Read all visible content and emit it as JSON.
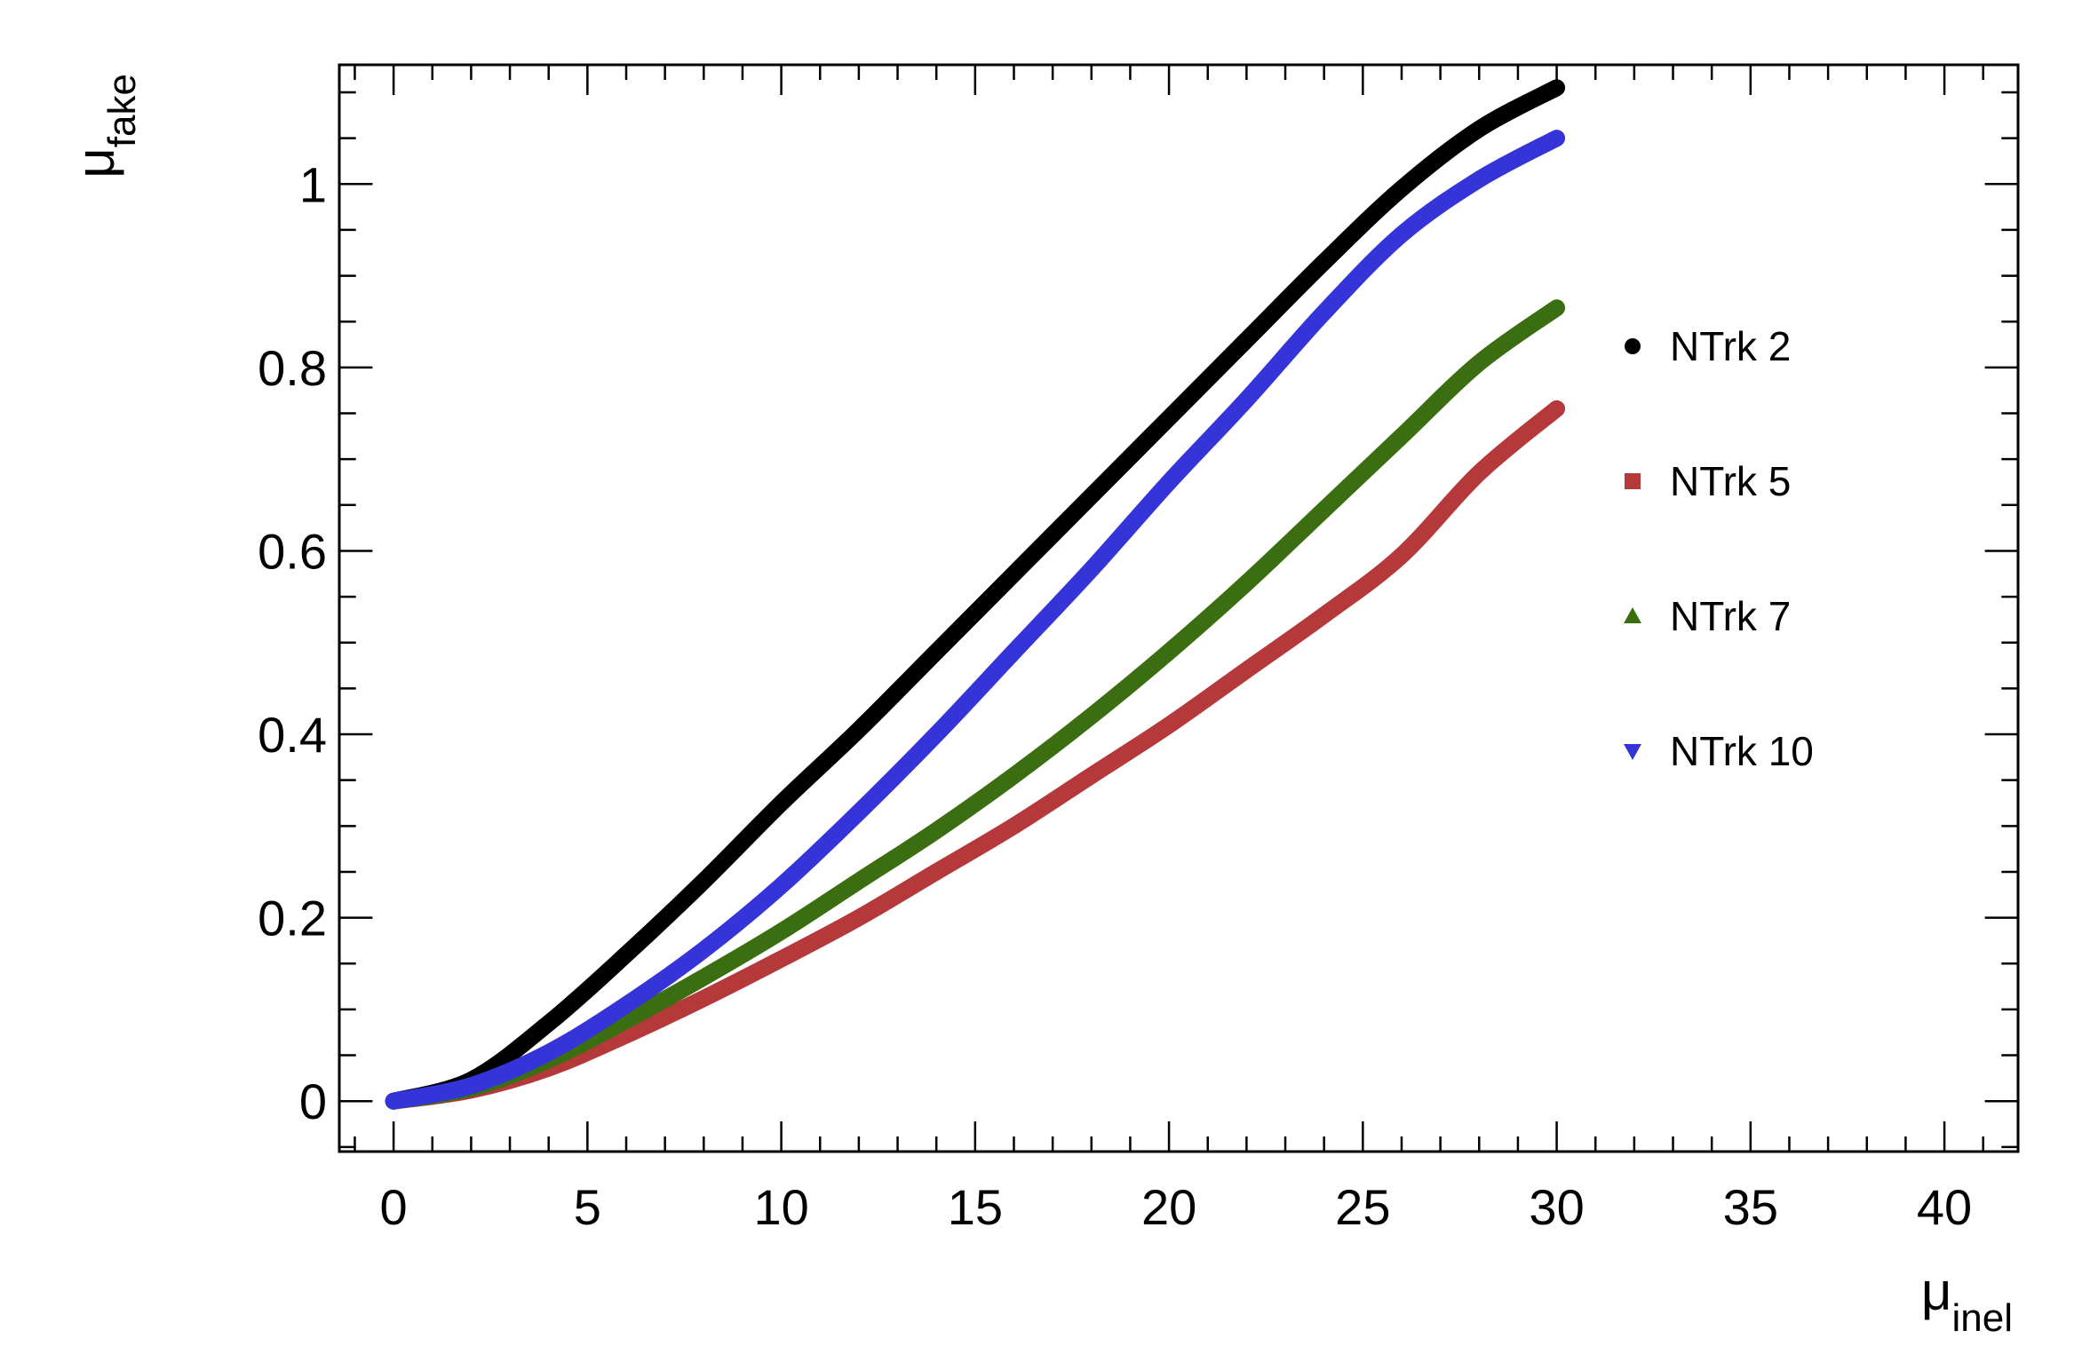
{
  "chart_data": {
    "type": "line",
    "title": "",
    "xlabel": {
      "main": "μ",
      "sub": "inel"
    },
    "ylabel": {
      "main": "μ",
      "sub": "fake"
    },
    "xlim": [
      -1.4,
      41.9
    ],
    "ylim": [
      -0.055,
      1.13
    ],
    "xticks": [
      0,
      5,
      10,
      15,
      20,
      25,
      30,
      35,
      40
    ],
    "xtick_labels": [
      "0",
      "5",
      "10",
      "15",
      "20",
      "25",
      "30",
      "35",
      "40"
    ],
    "yticks": [
      0,
      0.2,
      0.4,
      0.6,
      0.8,
      1
    ],
    "ytick_labels": [
      "0",
      "0.2",
      "0.4",
      "0.6",
      "0.8",
      "1"
    ],
    "grid": false,
    "legend_position": "right",
    "x": [
      0,
      2,
      4,
      6,
      8,
      10,
      12,
      14,
      16,
      18,
      20,
      22,
      24,
      26,
      28,
      30
    ],
    "series": [
      {
        "name": "NTrk 2",
        "marker": "circle",
        "color": "#000000",
        "values": [
          0,
          0.023,
          0.085,
          0.16,
          0.24,
          0.325,
          0.405,
          0.49,
          0.575,
          0.66,
          0.745,
          0.83,
          0.915,
          0.995,
          1.06,
          1.105
        ]
      },
      {
        "name": "NTrk 5",
        "marker": "square",
        "color": "#b5383a",
        "values": [
          0,
          0.012,
          0.036,
          0.072,
          0.112,
          0.155,
          0.2,
          0.25,
          0.3,
          0.355,
          0.41,
          0.47,
          0.53,
          0.595,
          0.685,
          0.755
        ]
      },
      {
        "name": "NTrk 7",
        "marker": "triangle-up",
        "color": "#3b6e10",
        "values": [
          0,
          0.014,
          0.045,
          0.088,
          0.135,
          0.185,
          0.24,
          0.295,
          0.355,
          0.42,
          0.49,
          0.565,
          0.645,
          0.725,
          0.805,
          0.865
        ]
      },
      {
        "name": "NTrk 10",
        "marker": "triangle-down",
        "color": "#3434d8",
        "values": [
          0,
          0.017,
          0.053,
          0.105,
          0.165,
          0.235,
          0.315,
          0.4,
          0.49,
          0.58,
          0.675,
          0.765,
          0.86,
          0.945,
          1.005,
          1.05
        ]
      }
    ]
  }
}
